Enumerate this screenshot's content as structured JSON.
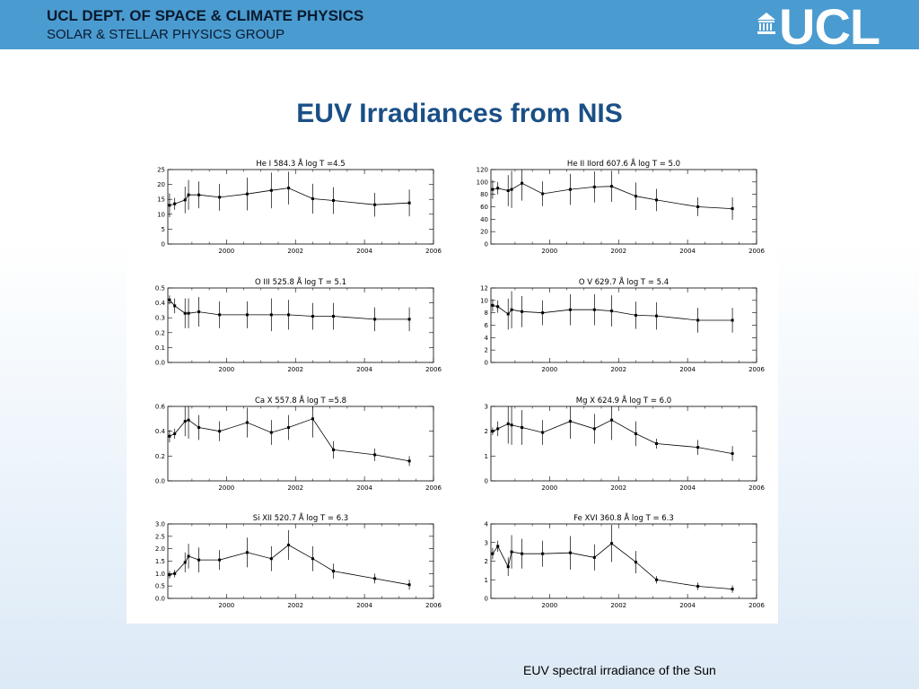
{
  "header": {
    "dept": "UCL DEPT. OF SPACE & CLIMATE PHYSICS",
    "group": "SOLAR & STELLAR PHYSICS GROUP",
    "logo_text": "UCL"
  },
  "slide_title": "EUV Irradiances from NIS",
  "caption": "EUV spectral irradiance of the Sun",
  "colors": {
    "header_bg": "#4a9bd0",
    "title": "#1a4f86",
    "logo": "#ffffff"
  },
  "chart_data": [
    {
      "type": "line",
      "title": "He I  584.3 Å log T =4.5",
      "xlim": [
        1998.3,
        2006
      ],
      "xticks": [
        2000,
        2002,
        2004,
        2006
      ],
      "ylim": [
        0,
        25
      ],
      "yticks": [
        "0",
        "5",
        "10",
        "15",
        "20",
        "25"
      ],
      "x": [
        1998.35,
        1998.5,
        1998.8,
        1998.9,
        1999.2,
        1999.8,
        2000.6,
        2001.3,
        2001.8,
        2002.5,
        2003.1,
        2004.3,
        2005.3
      ],
      "y": [
        13,
        13.5,
        14.8,
        16.5,
        16.5,
        15.7,
        16.8,
        18.0,
        18.8,
        15.2,
        14.6,
        13.2,
        13.8
      ],
      "err": [
        4,
        2,
        4.5,
        5,
        4.5,
        4.5,
        5.5,
        6,
        5.5,
        5,
        4.5,
        4,
        4.5
      ]
    },
    {
      "type": "line",
      "title": "He II  IIord 607.6 Å log T = 5.0",
      "xlim": [
        1998.3,
        2006
      ],
      "xticks": [
        2000,
        2002,
        2004,
        2006
      ],
      "ylim": [
        0,
        120
      ],
      "yticks": [
        "0",
        "20",
        "40",
        "60",
        "80",
        "100",
        "120"
      ],
      "x": [
        1998.35,
        1998.5,
        1998.8,
        1998.9,
        1999.2,
        1999.8,
        2000.6,
        2001.3,
        2001.8,
        2002.5,
        2003.1,
        2004.3,
        2005.3
      ],
      "y": [
        88,
        90,
        86,
        88,
        98,
        81,
        88,
        92,
        93,
        77,
        71,
        60,
        57
      ],
      "err": [
        15,
        10,
        25,
        30,
        28,
        20,
        25,
        25,
        25,
        22,
        18,
        15,
        18
      ]
    },
    {
      "type": "line",
      "title": "O III  525.8 Å log T = 5.1",
      "xlim": [
        1998.3,
        2006
      ],
      "xticks": [
        2000,
        2002,
        2004,
        2006
      ],
      "ylim": [
        0,
        0.5
      ],
      "yticks": [
        "0.0",
        "0.1",
        "0.2",
        "0.3",
        "0.4",
        "0.5"
      ],
      "x": [
        1998.35,
        1998.5,
        1998.8,
        1998.9,
        1999.2,
        1999.8,
        2000.6,
        2001.3,
        2001.8,
        2002.5,
        2003.1,
        2004.3,
        2005.3
      ],
      "y": [
        0.42,
        0.38,
        0.33,
        0.33,
        0.34,
        0.32,
        0.32,
        0.32,
        0.32,
        0.31,
        0.31,
        0.29,
        0.29
      ],
      "err": [
        0.03,
        0.05,
        0.1,
        0.1,
        0.1,
        0.09,
        0.09,
        0.11,
        0.1,
        0.09,
        0.09,
        0.08,
        0.08
      ]
    },
    {
      "type": "line",
      "title": "O V  629.7 Å log T = 5.4",
      "xlim": [
        1998.3,
        2006
      ],
      "xticks": [
        2000,
        2002,
        2004,
        2006
      ],
      "ylim": [
        0,
        12
      ],
      "yticks": [
        "0",
        "2",
        "4",
        "6",
        "8",
        "10",
        "12"
      ],
      "x": [
        1998.35,
        1998.5,
        1998.8,
        1998.9,
        1999.2,
        1999.8,
        2000.6,
        2001.3,
        2001.8,
        2002.5,
        2003.1,
        2004.3,
        2005.3
      ],
      "y": [
        9.2,
        9.0,
        7.8,
        8.5,
        8.2,
        8.0,
        8.5,
        8.5,
        8.3,
        7.6,
        7.5,
        6.8,
        6.8
      ],
      "err": [
        1,
        1,
        2.5,
        3,
        2.5,
        2,
        2.5,
        2.5,
        2.5,
        2.2,
        2.2,
        2,
        2
      ]
    },
    {
      "type": "line",
      "title": "Ca X  557.8 Å log T =5.8",
      "xlim": [
        1998.3,
        2006
      ],
      "xticks": [
        2000,
        2002,
        2004,
        2006
      ],
      "ylim": [
        0,
        0.6
      ],
      "yticks": [
        "0.0",
        "0.2",
        "0.4",
        "0.6"
      ],
      "x": [
        1998.35,
        1998.5,
        1998.8,
        1998.9,
        1999.2,
        1999.8,
        2000.6,
        2001.3,
        2001.8,
        2002.5,
        2003.1,
        2004.3,
        2005.3
      ],
      "y": [
        0.36,
        0.38,
        0.48,
        0.49,
        0.43,
        0.4,
        0.47,
        0.39,
        0.43,
        0.5,
        0.25,
        0.21,
        0.16
      ],
      "err": [
        0.05,
        0.04,
        0.12,
        0.15,
        0.1,
        0.08,
        0.12,
        0.1,
        0.1,
        0.15,
        0.07,
        0.05,
        0.04
      ]
    },
    {
      "type": "line",
      "title": "Mg X  624.9 Å log T = 6.0",
      "xlim": [
        1998.3,
        2006
      ],
      "xticks": [
        2000,
        2002,
        2004,
        2006
      ],
      "ylim": [
        0,
        3
      ],
      "yticks": [
        "0",
        "1",
        "2",
        "3"
      ],
      "x": [
        1998.35,
        1998.5,
        1998.8,
        1998.9,
        1999.2,
        1999.8,
        2000.6,
        2001.3,
        2001.8,
        2002.5,
        2003.1,
        2004.3,
        2005.3
      ],
      "y": [
        2.0,
        2.1,
        2.3,
        2.25,
        2.15,
        1.95,
        2.4,
        2.1,
        2.45,
        1.9,
        1.5,
        1.35,
        1.1
      ],
      "err": [
        0.15,
        0.3,
        0.8,
        0.8,
        0.7,
        0.5,
        0.7,
        0.6,
        0.8,
        0.5,
        0.2,
        0.3,
        0.3
      ]
    },
    {
      "type": "line",
      "title": "Si XII  520.7 Å log T = 6.3",
      "xlim": [
        1998.3,
        2006
      ],
      "xticks": [
        2000,
        2002,
        2004,
        2006
      ],
      "ylim": [
        0,
        3.0
      ],
      "yticks": [
        "0.0",
        "0.5",
        "1.0",
        "1.5",
        "2.0",
        "2.5",
        "3.0"
      ],
      "x": [
        1998.35,
        1998.5,
        1998.8,
        1998.9,
        1999.2,
        1999.8,
        2000.6,
        2001.3,
        2001.8,
        2002.5,
        2003.1,
        2004.3,
        2005.3
      ],
      "y": [
        0.95,
        1.0,
        1.45,
        1.7,
        1.55,
        1.55,
        1.85,
        1.6,
        2.15,
        1.6,
        1.1,
        0.8,
        0.55
      ],
      "err": [
        0.15,
        0.15,
        0.4,
        0.5,
        0.5,
        0.4,
        0.6,
        0.5,
        0.6,
        0.5,
        0.3,
        0.2,
        0.2
      ]
    },
    {
      "type": "line",
      "title": "Fe XVI  360.8 Å log T = 6.3",
      "xlim": [
        1998.3,
        2006
      ],
      "xticks": [
        2000,
        2002,
        2004,
        2006
      ],
      "ylim": [
        0,
        4
      ],
      "yticks": [
        "0",
        "1",
        "2",
        "3",
        "4"
      ],
      "x": [
        1998.35,
        1998.5,
        1998.8,
        1998.9,
        1999.2,
        1999.8,
        2000.6,
        2001.3,
        2001.8,
        2002.5,
        2003.1,
        2004.3,
        2005.3
      ],
      "y": [
        2.4,
        2.8,
        1.7,
        2.5,
        2.4,
        2.4,
        2.45,
        2.2,
        2.95,
        1.95,
        1.0,
        0.65,
        0.5
      ],
      "err": [
        0.3,
        0.3,
        0.5,
        0.9,
        0.8,
        0.7,
        0.9,
        0.7,
        1.0,
        0.6,
        0.2,
        0.2,
        0.2
      ]
    }
  ]
}
